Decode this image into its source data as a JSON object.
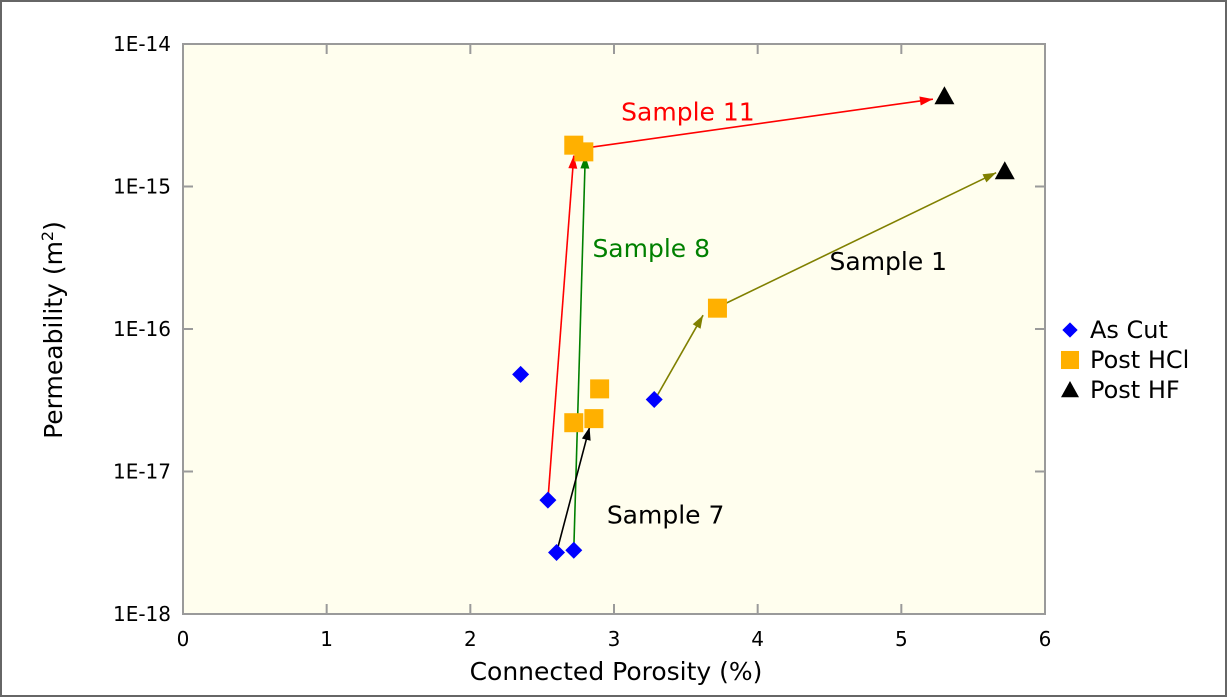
{
  "chart_data": {
    "type": "scatter",
    "title": "",
    "xlabel": "Connected Porosity (%)",
    "ylabel_main": "Permeability (m",
    "ylabel_sup": "2",
    "ylabel_close": ")",
    "xlim": [
      0,
      6
    ],
    "ylim": [
      1e-18,
      1e-14
    ],
    "yscale": "log",
    "grid": false,
    "plot_background": "#fffeee",
    "x_ticks": [
      0,
      1,
      2,
      3,
      4,
      5,
      6
    ],
    "x_tick_labels": [
      "0",
      "1",
      "2",
      "3",
      "4",
      "5",
      "6"
    ],
    "y_ticks": [
      1e-18,
      1e-17,
      1e-16,
      1e-15,
      1e-14
    ],
    "y_tick_labels": [
      "1E-18",
      "1E-17",
      "1E-16",
      "1E-15",
      "1E-14"
    ],
    "legend_position": "right",
    "series": [
      {
        "name": "As Cut",
        "marker": "diamond",
        "color": "#0000ff",
        "points": [
          {
            "x": 2.35,
            "y": 4.8e-17
          },
          {
            "x": 2.54,
            "y": 6.3e-18
          },
          {
            "x": 2.6,
            "y": 2.7e-18
          },
          {
            "x": 2.72,
            "y": 2.8e-18
          },
          {
            "x": 3.28,
            "y": 3.2e-17
          }
        ]
      },
      {
        "name": "Post HCl",
        "marker": "square",
        "color": "#ffb000",
        "points": [
          {
            "x": 2.72,
            "y": 1.95e-15
          },
          {
            "x": 2.79,
            "y": 1.75e-15
          },
          {
            "x": 2.72,
            "y": 2.2e-17
          },
          {
            "x": 2.86,
            "y": 2.35e-17
          },
          {
            "x": 2.9,
            "y": 3.8e-17
          },
          {
            "x": 3.72,
            "y": 1.4e-16
          }
        ]
      },
      {
        "name": "Post HF",
        "marker": "triangle",
        "color": "#000000",
        "points": [
          {
            "x": 5.3,
            "y": 4.3e-15
          },
          {
            "x": 5.72,
            "y": 1.28e-15
          }
        ]
      }
    ],
    "arrows": [
      {
        "from": [
          2.54,
          6.3e-18
        ],
        "to": [
          2.72,
          1.65e-15
        ],
        "color": "#ff0000"
      },
      {
        "from": [
          2.78,
          1.85e-15
        ],
        "to": [
          5.22,
          4.1e-15
        ],
        "color": "#ff0000"
      },
      {
        "from": [
          2.72,
          2.8e-18
        ],
        "to": [
          2.8,
          1.65e-15
        ],
        "color": "#008000"
      },
      {
        "from": [
          2.6,
          2.7e-18
        ],
        "to": [
          2.83,
          2.05e-17
        ],
        "color": "#000000"
      },
      {
        "from": [
          3.3,
          3.4e-17
        ],
        "to": [
          3.62,
          1.25e-16
        ],
        "color": "#808000"
      },
      {
        "from": [
          3.74,
          1.45e-16
        ],
        "to": [
          5.66,
          1.25e-15
        ],
        "color": "#808000"
      }
    ],
    "annotations": [
      {
        "text": "Sample 11",
        "x": 3.05,
        "y": 2.9e-15,
        "color": "#ff0000"
      },
      {
        "text": "Sample 8",
        "x": 2.85,
        "y": 3.2e-16,
        "color": "#008000"
      },
      {
        "text": "Sample 1",
        "x": 4.5,
        "y": 2.6e-16,
        "color": "#000000"
      },
      {
        "text": "Sample 7",
        "x": 2.95,
        "y": 4.3e-18,
        "color": "#000000"
      }
    ]
  }
}
